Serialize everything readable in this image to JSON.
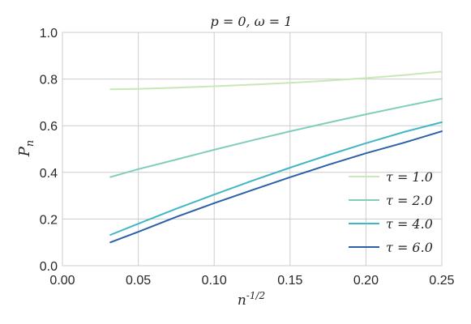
{
  "chart_data": {
    "type": "line",
    "title": "p = 0, ω = 1",
    "xlabel": "n^{-1/2}",
    "ylabel": "P_n",
    "xlim": [
      0.0,
      0.25
    ],
    "ylim": [
      0.0,
      1.0
    ],
    "xticks": [
      "0.00",
      "0.05",
      "0.10",
      "0.15",
      "0.20",
      "0.25"
    ],
    "yticks": [
      "0.0",
      "0.2",
      "0.4",
      "0.6",
      "0.8",
      "1.0"
    ],
    "grid": true,
    "legend_position": "lower-right",
    "series": [
      {
        "name": "τ = 1.0",
        "color": "#c7e9b4",
        "x": [
          0.0316,
          0.05,
          0.075,
          0.1,
          0.125,
          0.15,
          0.175,
          0.2,
          0.225,
          0.25
        ],
        "values": [
          0.756,
          0.758,
          0.763,
          0.769,
          0.776,
          0.784,
          0.793,
          0.804,
          0.817,
          0.832
        ]
      },
      {
        "name": "τ = 2.0",
        "color": "#7fcdbb",
        "x": [
          0.0316,
          0.05,
          0.075,
          0.1,
          0.125,
          0.15,
          0.175,
          0.2,
          0.225,
          0.25
        ],
        "values": [
          0.38,
          0.414,
          0.455,
          0.497,
          0.537,
          0.576,
          0.613,
          0.649,
          0.683,
          0.716
        ]
      },
      {
        "name": "τ = 4.0",
        "color": "#41b6c4",
        "x": [
          0.0316,
          0.05,
          0.075,
          0.1,
          0.125,
          0.15,
          0.175,
          0.2,
          0.225,
          0.25
        ],
        "values": [
          0.132,
          0.18,
          0.244,
          0.305,
          0.364,
          0.42,
          0.474,
          0.525,
          0.573,
          0.615
        ]
      },
      {
        "name": "τ = 6.0",
        "color": "#2c5fa8",
        "x": [
          0.0316,
          0.05,
          0.075,
          0.1,
          0.125,
          0.15,
          0.175,
          0.2,
          0.225,
          0.25
        ],
        "values": [
          0.1,
          0.145,
          0.209,
          0.268,
          0.324,
          0.379,
          0.432,
          0.482,
          0.527,
          0.576
        ]
      }
    ]
  }
}
